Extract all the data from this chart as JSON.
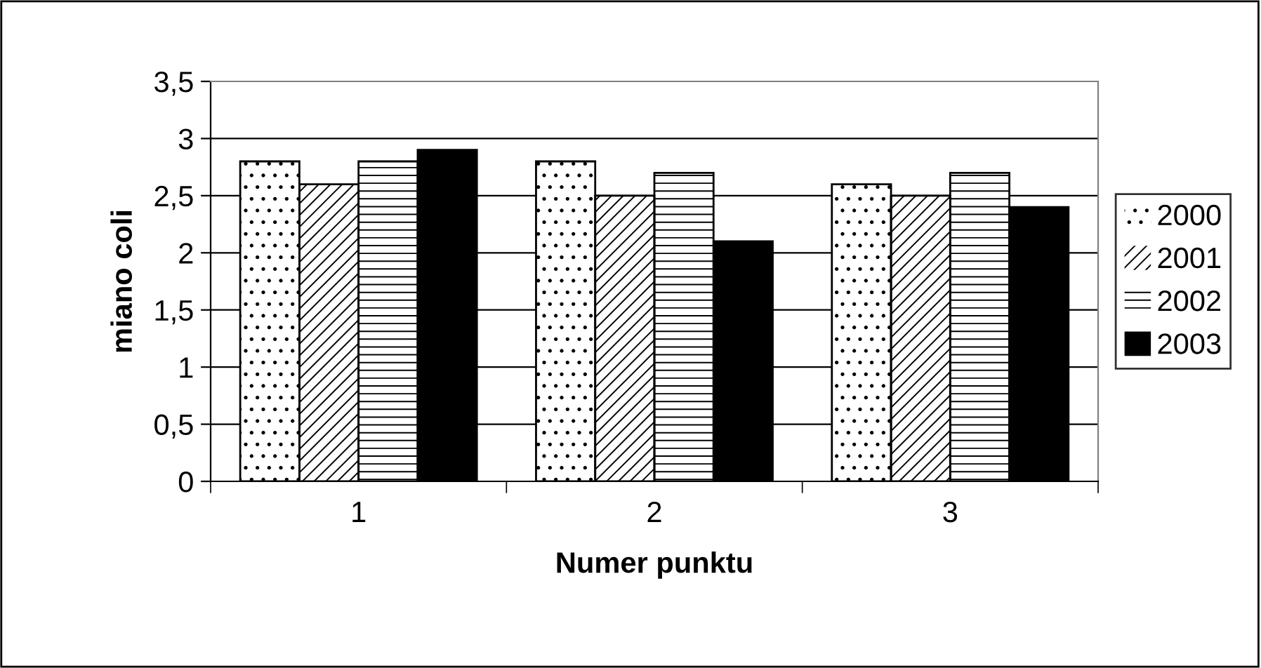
{
  "chart_data": {
    "type": "bar",
    "xlabel": "Numer punktu",
    "ylabel": "miano coli",
    "categories": [
      "1",
      "2",
      "3"
    ],
    "series": [
      {
        "name": "2000",
        "color": "#ffffff",
        "values": [
          2.8,
          2.8,
          2.6
        ]
      },
      {
        "name": "2001",
        "color": "#ffffff",
        "values": [
          2.6,
          2.5,
          2.5
        ]
      },
      {
        "name": "2002",
        "color": "#ffffff",
        "values": [
          2.8,
          2.7,
          2.7
        ]
      },
      {
        "name": "2003",
        "color": "#000000",
        "values": [
          2.9,
          2.1,
          2.4
        ]
      }
    ],
    "ylim": [
      0,
      3.5
    ],
    "yticks": [
      0,
      {
        "value": 0.5,
        "label": "0,5"
      },
      1,
      {
        "value": 1.5,
        "label": "1,5"
      },
      2,
      {
        "value": 2.5,
        "label": "2,5"
      },
      3,
      {
        "value": 3.5,
        "label": "3,5"
      }
    ],
    "grid": "y",
    "legend": "right"
  }
}
